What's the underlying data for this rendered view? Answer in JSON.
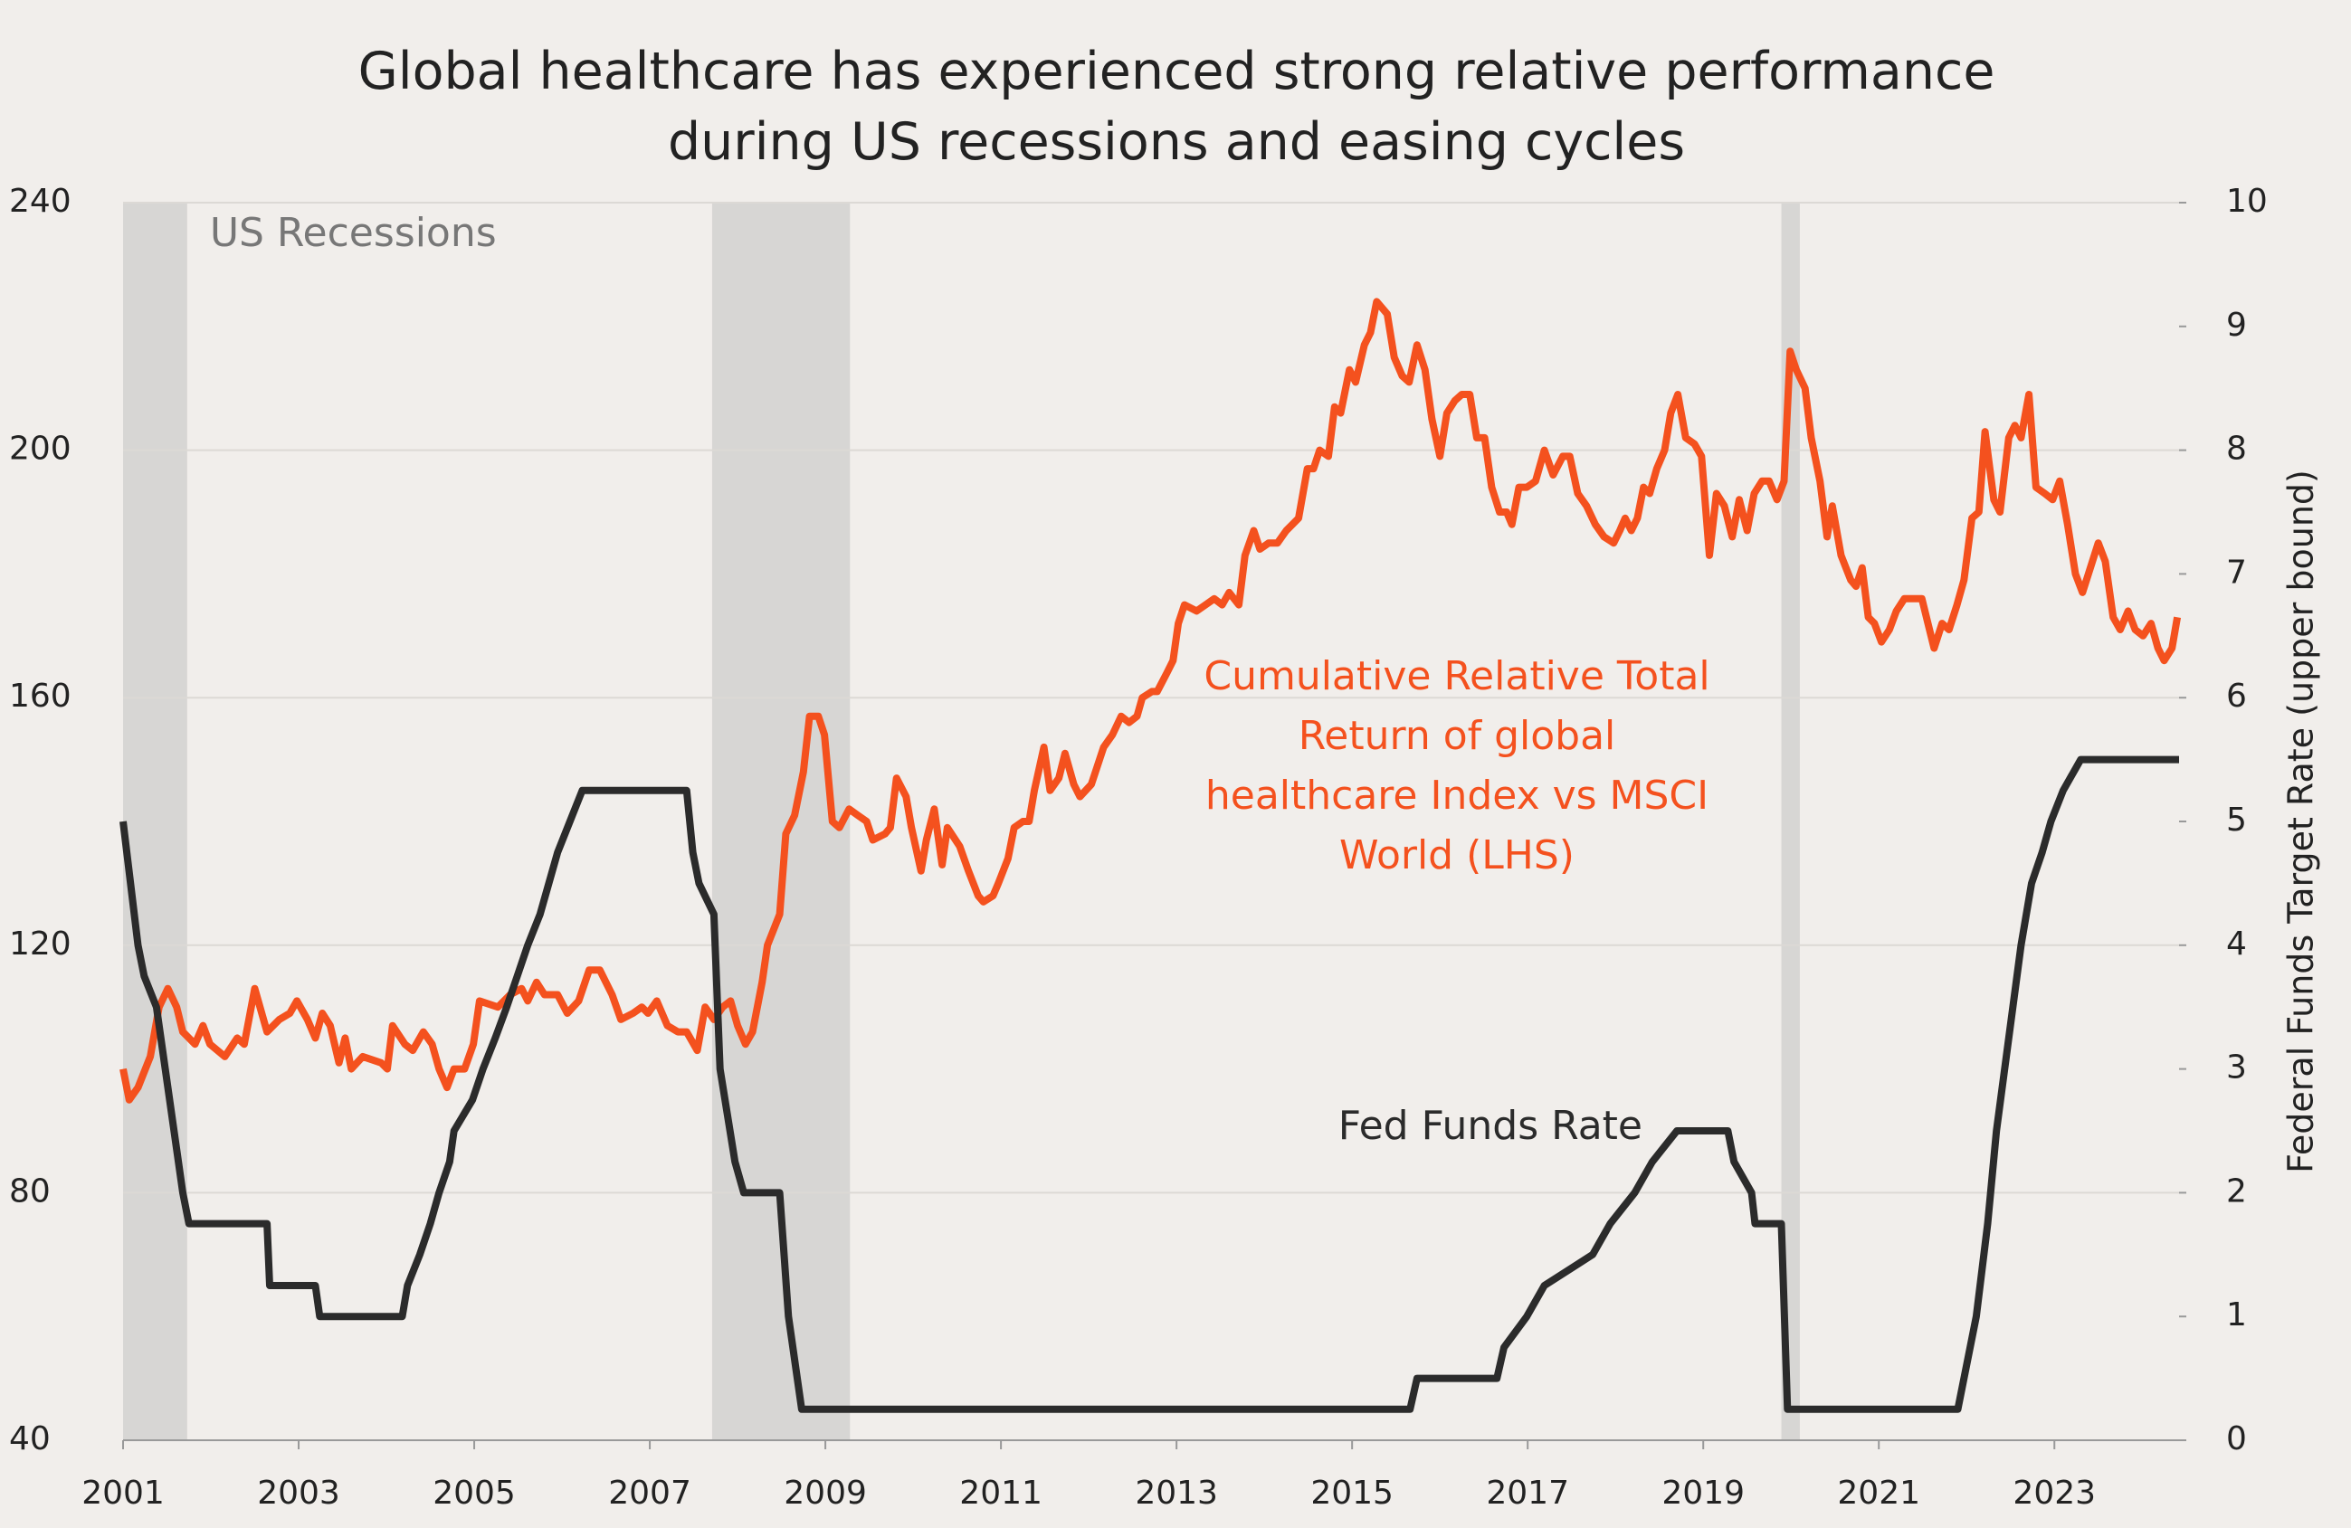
{
  "chart_data": {
    "type": "line",
    "title": "Global healthcare has experienced strong relative performance during US recessions and easing cycles",
    "y2label": "Federal Funds Target Rate (upper bound)",
    "xlim": [
      2001,
      2024.42
    ],
    "xticks": [
      2001,
      2003,
      2005,
      2007,
      2009,
      2011,
      2013,
      2015,
      2017,
      2019,
      2021,
      2023
    ],
    "ylim": [
      40,
      240
    ],
    "yticks": [
      40,
      80,
      120,
      160,
      200,
      240
    ],
    "y2lim": [
      0,
      10
    ],
    "y2ticks": [
      0,
      1,
      2,
      3,
      4,
      5,
      6,
      7,
      8,
      9,
      10
    ],
    "grid": true,
    "recessions": {
      "label": "US Recessions",
      "ranges": [
        [
          2001.0,
          2001.73
        ],
        [
          2007.71,
          2009.28
        ],
        [
          2019.89,
          2020.1
        ]
      ],
      "color": "#d7d6d4"
    },
    "series": [
      {
        "name": "Cumulative Relative Total Return of global healthcare Index vs MSCI World (LHS)",
        "color": "#f4511e",
        "x": [
          2001.0,
          2001.07,
          2001.17,
          2001.31,
          2001.41,
          2001.51,
          2001.61,
          2001.68,
          2001.82,
          2001.91,
          2001.99,
          2002.16,
          2002.3,
          2002.38,
          2002.5,
          2002.64,
          2002.78,
          2002.9,
          2002.98,
          2003.1,
          2003.19,
          2003.27,
          2003.36,
          2003.46,
          2003.53,
          2003.6,
          2003.73,
          2003.94,
          2004.01,
          2004.07,
          2004.21,
          2004.3,
          2004.42,
          2004.52,
          2004.6,
          2004.69,
          2004.77,
          2004.89,
          2004.99,
          2005.06,
          2005.27,
          2005.41,
          2005.54,
          2005.61,
          2005.71,
          2005.8,
          2005.95,
          2006.06,
          2006.19,
          2006.31,
          2006.43,
          2006.57,
          2006.67,
          2006.81,
          2006.91,
          2006.98,
          2007.08,
          2007.2,
          2007.32,
          2007.42,
          2007.54,
          2007.63,
          2007.73,
          2007.83,
          2007.92,
          2008.0,
          2008.09,
          2008.17,
          2008.28,
          2008.34,
          2008.48,
          2008.55,
          2008.65,
          2008.75,
          2008.82,
          2008.92,
          2008.99,
          2009.08,
          2009.16,
          2009.27,
          2009.37,
          2009.47,
          2009.54,
          2009.68,
          2009.74,
          2009.81,
          2009.92,
          2009.98,
          2010.09,
          2010.15,
          2010.24,
          2010.33,
          2010.39,
          2010.53,
          2010.63,
          2010.74,
          2010.8,
          2010.91,
          2010.97,
          2011.08,
          2011.15,
          2011.25,
          2011.32,
          2011.38,
          2011.49,
          2011.56,
          2011.66,
          2011.73,
          2011.83,
          2011.9,
          2012.03,
          2012.17,
          2012.27,
          2012.37,
          2012.46,
          2012.55,
          2012.61,
          2012.72,
          2012.78,
          2012.89,
          2012.96,
          2013.02,
          2013.09,
          2013.23,
          2013.33,
          2013.43,
          2013.52,
          2013.6,
          2013.71,
          2013.78,
          2013.88,
          2013.95,
          2014.05,
          2014.15,
          2014.25,
          2014.39,
          2014.49,
          2014.56,
          2014.63,
          2014.73,
          2014.8,
          2014.87,
          2014.97,
          2015.04,
          2015.14,
          2015.21,
          2015.28,
          2015.4,
          2015.48,
          2015.57,
          2015.65,
          2015.74,
          2015.83,
          2015.91,
          2016.0,
          2016.08,
          2016.17,
          2016.25,
          2016.34,
          2016.42,
          2016.51,
          2016.59,
          2016.68,
          2016.76,
          2016.82,
          2016.9,
          2016.99,
          2017.09,
          2017.19,
          2017.29,
          2017.4,
          2017.48,
          2017.57,
          2017.67,
          2017.77,
          2017.87,
          2017.98,
          2018.05,
          2018.11,
          2018.18,
          2018.25,
          2018.32,
          2018.39,
          2018.47,
          2018.56,
          2018.63,
          2018.71,
          2018.8,
          2018.9,
          2018.98,
          2019.07,
          2019.15,
          2019.24,
          2019.33,
          2019.41,
          2019.5,
          2019.58,
          2019.67,
          2019.75,
          2019.84,
          2019.92,
          2019.99,
          2020.06,
          2020.16,
          2020.23,
          2020.33,
          2020.41,
          2020.47,
          2020.57,
          2020.68,
          2020.74,
          2020.81,
          2020.88,
          2020.95,
          2021.03,
          2021.12,
          2021.2,
          2021.29,
          2021.39,
          2021.49,
          2021.56,
          2021.63,
          2021.72,
          2021.8,
          2021.89,
          2021.97,
          2022.06,
          2022.14,
          2022.21,
          2022.31,
          2022.38,
          2022.48,
          2022.55,
          2022.62,
          2022.71,
          2022.79,
          2022.89,
          2022.98,
          2023.06,
          2023.15,
          2023.24,
          2023.32,
          2023.41,
          2023.5,
          2023.58,
          2023.67,
          2023.75,
          2023.84,
          2023.92,
          2024.01,
          2024.1,
          2024.18,
          2024.25,
          2024.34,
          2024.4
        ],
        "values": [
          100,
          95,
          97,
          102,
          110,
          113,
          110,
          106,
          104,
          107,
          104,
          102,
          105,
          104,
          113,
          106,
          108,
          109,
          111,
          108,
          105,
          109,
          107,
          101,
          105,
          100,
          102,
          101,
          100,
          107,
          104,
          103,
          106,
          104,
          100,
          97,
          100,
          100,
          104,
          111,
          110,
          112,
          113,
          111,
          114,
          112,
          112,
          109,
          111,
          116,
          116,
          112,
          108,
          109,
          110,
          109,
          111,
          107,
          106,
          106,
          103,
          110,
          108,
          110,
          111,
          107,
          104,
          106,
          114,
          120,
          125,
          138,
          141,
          148,
          157,
          157,
          154,
          140,
          139,
          142,
          141,
          140,
          137,
          138,
          139,
          147,
          144,
          139,
          132,
          137,
          142,
          133,
          139,
          136,
          132,
          128,
          127,
          128,
          130,
          134,
          139,
          140,
          140,
          145,
          152,
          145,
          147,
          151,
          146,
          144,
          146,
          152,
          154,
          157,
          156,
          157,
          160,
          161,
          161,
          164,
          166,
          172,
          175,
          174,
          175,
          176,
          175,
          177,
          175,
          183,
          187,
          184,
          185,
          185,
          187,
          189,
          197,
          197,
          200,
          199,
          207,
          206,
          213,
          211,
          217,
          219,
          224,
          222,
          215,
          212,
          211,
          217,
          213,
          205,
          199,
          206,
          208,
          209,
          209,
          202,
          202,
          194,
          190,
          190,
          188,
          194,
          194,
          195,
          200,
          196,
          199,
          199,
          193,
          191,
          188,
          186,
          185,
          187,
          189,
          187,
          189,
          194,
          193,
          197,
          200,
          206,
          209,
          202,
          201,
          199,
          183,
          193,
          191,
          186,
          192,
          187,
          193,
          195,
          195,
          192,
          195,
          216,
          213,
          210,
          202,
          195,
          186,
          191,
          183,
          179,
          178,
          181,
          173,
          172,
          169,
          171,
          174,
          176,
          176,
          176,
          172,
          168,
          172,
          171,
          175,
          179,
          189,
          190,
          203,
          192,
          190,
          202,
          204,
          202,
          209,
          194,
          193,
          192,
          195,
          188,
          180,
          177,
          181,
          185,
          182,
          173,
          171,
          174,
          171,
          170,
          172,
          168,
          166,
          168,
          173
        ]
      },
      {
        "name": "Fed Funds Rate",
        "color": "#2b2b2b",
        "axis": "y2",
        "x": [
          2001.0,
          2001.17,
          2001.24,
          2001.38,
          2001.48,
          2001.58,
          2001.68,
          2001.75,
          2002.64,
          2002.67,
          2003.19,
          2003.24,
          2004.18,
          2004.24,
          2004.38,
          2004.5,
          2004.6,
          2004.72,
          2004.77,
          2004.98,
          2005.1,
          2005.24,
          2005.37,
          2005.49,
          2005.61,
          2005.75,
          2005.85,
          2005.95,
          2006.09,
          2006.23,
          2007.42,
          2007.49,
          2007.56,
          2007.73,
          2007.8,
          2007.97,
          2008.07,
          2008.48,
          2008.58,
          2008.73,
          2015.66,
          2015.74,
          2016.65,
          2016.73,
          2016.99,
          2017.19,
          2017.74,
          2017.94,
          2018.22,
          2018.42,
          2018.7,
          2019.28,
          2019.35,
          2019.55,
          2019.59,
          2019.89,
          2019.96,
          2021.9,
          2021.97,
          2022.11,
          2022.24,
          2022.34,
          2022.48,
          2022.62,
          2022.74,
          2022.86,
          2022.96,
          2023.1,
          2023.3,
          2024.42
        ],
        "values": [
          5.0,
          4.0,
          3.75,
          3.5,
          3.0,
          2.5,
          2.0,
          1.75,
          1.75,
          1.25,
          1.25,
          1.0,
          1.0,
          1.25,
          1.5,
          1.75,
          2.0,
          2.25,
          2.5,
          2.75,
          3.0,
          3.25,
          3.5,
          3.75,
          4.0,
          4.25,
          4.5,
          4.75,
          5.0,
          5.25,
          5.25,
          4.75,
          4.5,
          4.25,
          3.0,
          2.25,
          2.0,
          2.0,
          1.0,
          0.25,
          0.25,
          0.5,
          0.5,
          0.75,
          1.0,
          1.25,
          1.5,
          1.75,
          2.0,
          2.25,
          2.5,
          2.5,
          2.25,
          2.0,
          1.75,
          1.75,
          0.25,
          0.25,
          0.5,
          1.0,
          1.75,
          2.5,
          3.25,
          4.0,
          4.5,
          4.75,
          5.0,
          5.25,
          5.5,
          5.5
        ]
      }
    ]
  }
}
